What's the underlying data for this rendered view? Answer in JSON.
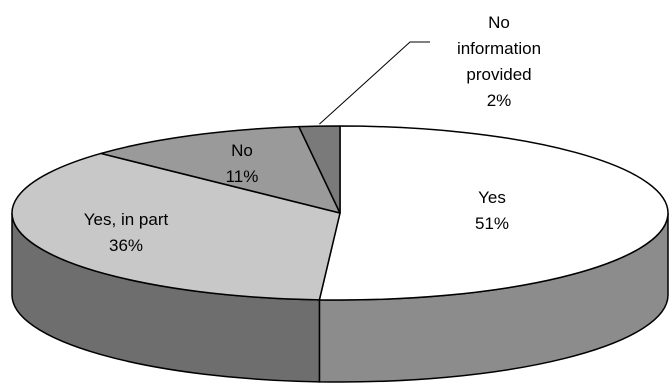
{
  "chart_data": {
    "type": "pie",
    "style": "3d",
    "slices": [
      {
        "label": "Yes",
        "label_lines": [
          "Yes"
        ],
        "value": 51,
        "value_label": "51%",
        "color": "#ffffff",
        "side_color": "#8c8c8c"
      },
      {
        "label": "Yes, in part",
        "label_lines": [
          "Yes, in part"
        ],
        "value": 36,
        "value_label": "36%",
        "color": "#c8c8c8",
        "side_color": "#6e6e6e"
      },
      {
        "label": "No",
        "label_lines": [
          "No"
        ],
        "value": 11,
        "value_label": "11%",
        "color": "#9a9a9a",
        "side_color": "#5a5a5a"
      },
      {
        "label": "No information provided",
        "label_lines": [
          "No",
          "information",
          "provided"
        ],
        "value": 2,
        "value_label": "2%",
        "color": "#7a7a7a",
        "side_color": "#4a4a4a"
      }
    ],
    "legend": "none",
    "title": ""
  }
}
